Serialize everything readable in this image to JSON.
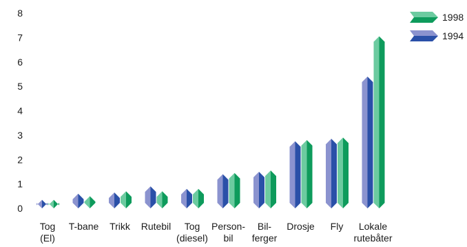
{
  "chart_data": {
    "type": "bar",
    "title": "",
    "xlabel": "",
    "ylabel": "",
    "ylim": [
      0,
      8
    ],
    "yticks": [
      0,
      1,
      2,
      3,
      4,
      5,
      6,
      7,
      8
    ],
    "grid": false,
    "legend_position": "top-right",
    "categories": [
      [
        "Tog",
        "(El)"
      ],
      [
        "T-bane"
      ],
      [
        "Trikk"
      ],
      [
        "Rutebil"
      ],
      [
        "Tog",
        "(diesel)"
      ],
      [
        "Person-",
        "bil"
      ],
      [
        "Bil-",
        "ferger"
      ],
      [
        "Drosje"
      ],
      [
        "Fly"
      ],
      [
        "Lokale",
        "rutebåter"
      ]
    ],
    "series": [
      {
        "name": "1994",
        "values": [
          0.35,
          0.6,
          0.65,
          0.9,
          0.8,
          1.4,
          1.5,
          2.75,
          2.85,
          5.4
        ],
        "light": "#8b93cf",
        "dark": "#2a50a8"
      },
      {
        "name": "1998",
        "values": [
          0.35,
          0.5,
          0.7,
          0.7,
          0.8,
          1.45,
          1.55,
          2.8,
          2.9,
          7.05
        ],
        "light": "#6ccba0",
        "dark": "#0e9b5c"
      }
    ],
    "legend_order": [
      "1998",
      "1994"
    ]
  }
}
